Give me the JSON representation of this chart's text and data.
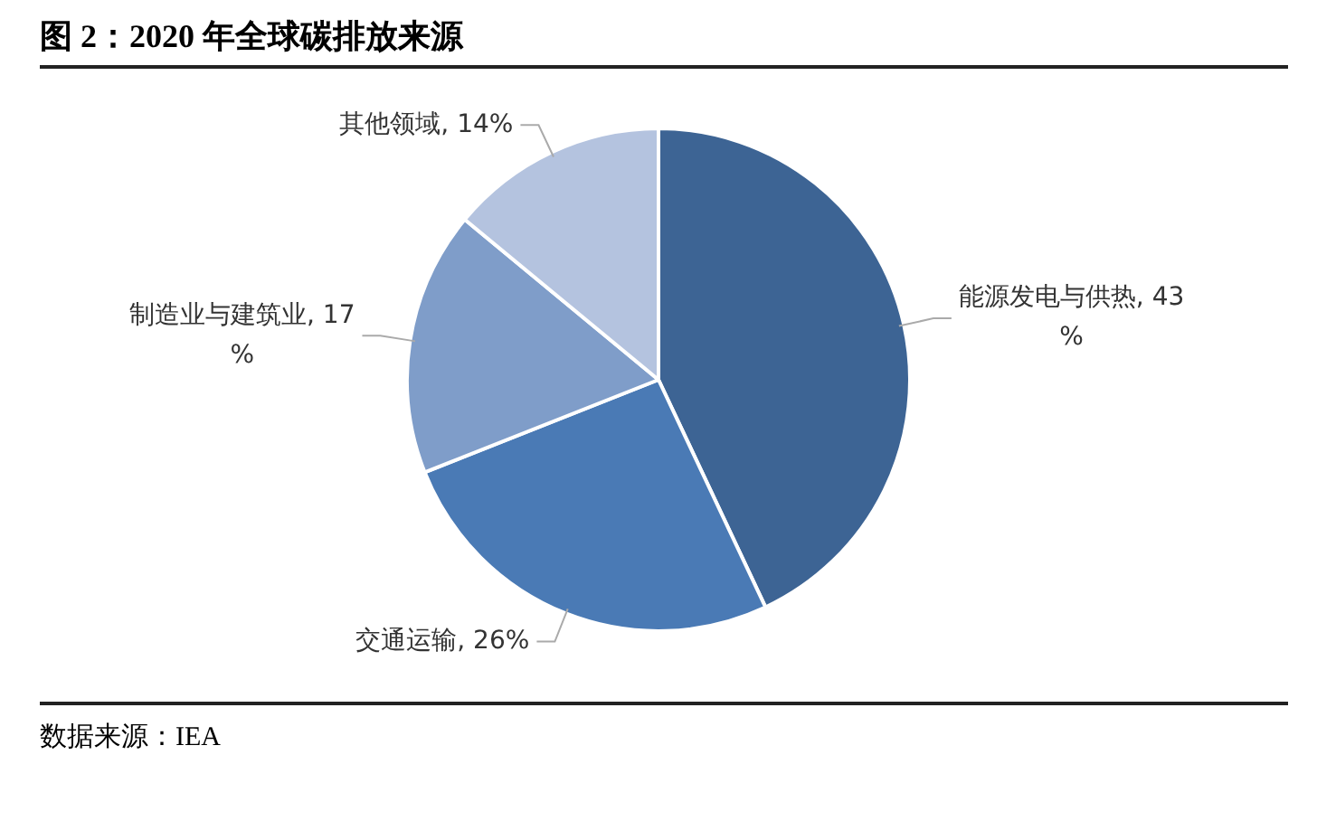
{
  "chart_data": {
    "type": "pie",
    "title": "图 2：2020 年全球碳排放来源",
    "categories": [
      "能源发电与供热",
      "交通运输",
      "制造业与建筑业",
      "其他领域"
    ],
    "values": [
      43,
      26,
      17,
      14
    ],
    "value_labels": [
      "43%",
      "26%",
      "17%",
      "14%"
    ],
    "colors": [
      "#3d6494",
      "#4a7ab5",
      "#7f9dc9",
      "#b4c3df"
    ],
    "legend": false,
    "annotations": [
      "数据来源：IEA"
    ]
  }
}
